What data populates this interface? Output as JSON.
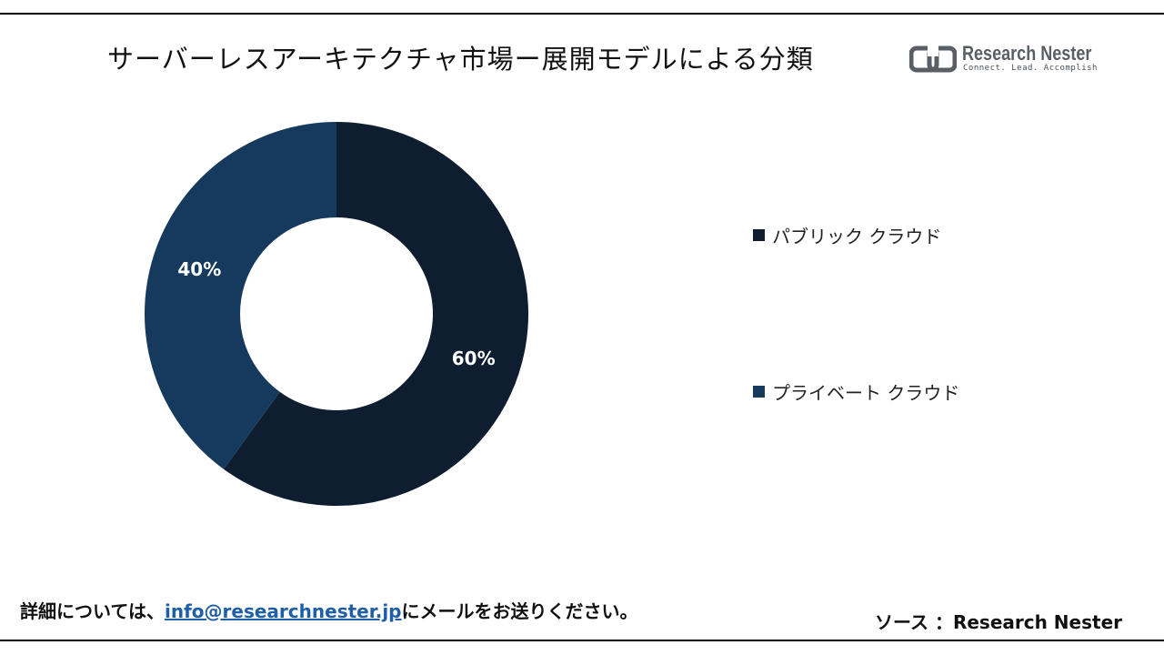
{
  "title": "サーバーレスアーキテクチャ市場ー展開モデルによる分類",
  "logo": {
    "name": "Research Nester",
    "tagline": "Connect. Lead. Accomplish",
    "icon": "research-nester-logo-icon",
    "color": "#5a5f66"
  },
  "chart_data": {
    "type": "pie",
    "variant": "donut",
    "title": "サーバーレスアーキテクチャ市場ー展開モデルによる分類",
    "categories": [
      "パブリック クラウド",
      "プライベート クラウド"
    ],
    "values": [
      60,
      40
    ],
    "value_labels": [
      "60%",
      "40%"
    ],
    "unit": "%",
    "colors": [
      "#0e1e30",
      "#163a5e"
    ],
    "legend_position": "right"
  },
  "footer": {
    "prefix": "詳細については、",
    "email": "info@researchnester.jp",
    "suffix": "にメールをお送りください。",
    "source": "ソース ：Research Nester"
  }
}
